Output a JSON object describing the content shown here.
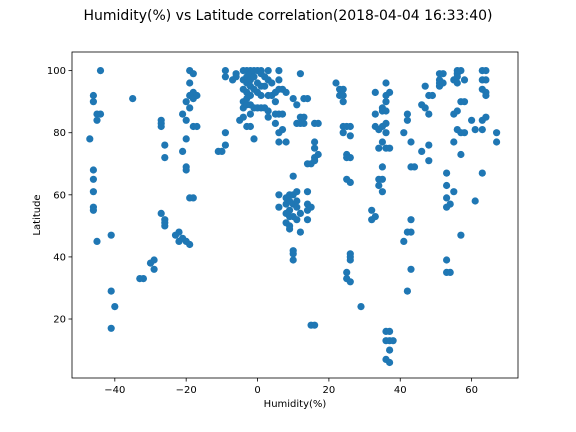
{
  "chart_data": {
    "type": "scatter",
    "title": "Humidity(%) vs Latitude correlation(2018-04-04 16:33:40)",
    "xlabel": "Humidity(%)",
    "ylabel": "Latitude",
    "xlim": [
      -52,
      73
    ],
    "ylim": [
      1,
      106
    ],
    "xticks": [
      -40,
      -20,
      0,
      20,
      40,
      60
    ],
    "yticks": [
      20,
      40,
      60,
      80,
      100
    ],
    "grid": false,
    "marker_color": "#1f77b4",
    "points": [
      [
        -47,
        78
      ],
      [
        -46,
        92
      ],
      [
        -46,
        90
      ],
      [
        -46,
        68
      ],
      [
        -46,
        65
      ],
      [
        -46,
        61
      ],
      [
        -46,
        56
      ],
      [
        -46,
        55
      ],
      [
        -45,
        86
      ],
      [
        -45,
        84
      ],
      [
        -45,
        45
      ],
      [
        -44,
        86
      ],
      [
        -44,
        100
      ],
      [
        -41,
        47
      ],
      [
        -41,
        29
      ],
      [
        -41,
        17
      ],
      [
        -40,
        24
      ],
      [
        -35,
        91
      ],
      [
        -33,
        33
      ],
      [
        -32,
        33
      ],
      [
        -30,
        38
      ],
      [
        -29,
        39
      ],
      [
        -29,
        36
      ],
      [
        -27,
        84
      ],
      [
        -27,
        83
      ],
      [
        -27,
        82
      ],
      [
        -27,
        54
      ],
      [
        -26,
        76
      ],
      [
        -26,
        72
      ],
      [
        -26,
        52
      ],
      [
        -26,
        51
      ],
      [
        -26,
        50
      ],
      [
        -23,
        47
      ],
      [
        -22,
        45
      ],
      [
        -22,
        48
      ],
      [
        -21,
        86
      ],
      [
        -21,
        74
      ],
      [
        -21,
        46
      ],
      [
        -20,
        90
      ],
      [
        -20,
        84
      ],
      [
        -20,
        78
      ],
      [
        -20,
        69
      ],
      [
        -20,
        68
      ],
      [
        -20,
        45
      ],
      [
        -19,
        100
      ],
      [
        -19,
        96
      ],
      [
        -19,
        92
      ],
      [
        -19,
        88
      ],
      [
        -19,
        44
      ],
      [
        -19,
        59
      ],
      [
        -18,
        93
      ],
      [
        -18,
        91
      ],
      [
        -18,
        99
      ],
      [
        -18,
        82
      ],
      [
        -18,
        59
      ],
      [
        -17,
        92
      ],
      [
        -17,
        82
      ],
      [
        -11,
        74
      ],
      [
        -10,
        74
      ],
      [
        -9,
        100
      ],
      [
        -9,
        98
      ],
      [
        -9,
        80
      ],
      [
        -9,
        76
      ],
      [
        -7,
        97
      ],
      [
        -6,
        99
      ],
      [
        -6,
        98
      ],
      [
        -5,
        84
      ],
      [
        -4,
        97
      ],
      [
        -4,
        94
      ],
      [
        -4,
        90
      ],
      [
        -4,
        88
      ],
      [
        -4,
        85
      ],
      [
        -4,
        100
      ],
      [
        -3,
        100
      ],
      [
        -3,
        98
      ],
      [
        -3,
        96
      ],
      [
        -3,
        93
      ],
      [
        -3,
        91
      ],
      [
        -3,
        89
      ],
      [
        -3,
        82
      ],
      [
        -2,
        100
      ],
      [
        -2,
        99
      ],
      [
        -2,
        97
      ],
      [
        -2,
        95
      ],
      [
        -2,
        92
      ],
      [
        -2,
        89
      ],
      [
        -2,
        86
      ],
      [
        -2,
        82
      ],
      [
        -1,
        100
      ],
      [
        -1,
        98
      ],
      [
        -1,
        94
      ],
      [
        -1,
        88
      ],
      [
        -1,
        78
      ],
      [
        0,
        100
      ],
      [
        0,
        96
      ],
      [
        0,
        93
      ],
      [
        0,
        88
      ],
      [
        1,
        100
      ],
      [
        1,
        99
      ],
      [
        1,
        95
      ],
      [
        1,
        92
      ],
      [
        1,
        88
      ],
      [
        2,
        98
      ],
      [
        2,
        95
      ],
      [
        2,
        88
      ],
      [
        3,
        100
      ],
      [
        3,
        97
      ],
      [
        3,
        92
      ],
      [
        3,
        87
      ],
      [
        3,
        85
      ],
      [
        4,
        96
      ],
      [
        4,
        92
      ],
      [
        5,
        93
      ],
      [
        5,
        90
      ],
      [
        5,
        86
      ],
      [
        5,
        83
      ],
      [
        6,
        100
      ],
      [
        6,
        97
      ],
      [
        6,
        94
      ],
      [
        6,
        86
      ],
      [
        6,
        80
      ],
      [
        6,
        77
      ],
      [
        6,
        60
      ],
      [
        6,
        56
      ],
      [
        7,
        94
      ],
      [
        7,
        86
      ],
      [
        7,
        81
      ],
      [
        8,
        93
      ],
      [
        8,
        77
      ],
      [
        8,
        59
      ],
      [
        8,
        57
      ],
      [
        8,
        54
      ],
      [
        8,
        51
      ],
      [
        9,
        60
      ],
      [
        9,
        58
      ],
      [
        9,
        55
      ],
      [
        9,
        53
      ],
      [
        9,
        50
      ],
      [
        9,
        49
      ],
      [
        10,
        91
      ],
      [
        10,
        66
      ],
      [
        10,
        60
      ],
      [
        10,
        57
      ],
      [
        10,
        53
      ],
      [
        10,
        42
      ],
      [
        10,
        41
      ],
      [
        10,
        39
      ],
      [
        11,
        89
      ],
      [
        11,
        83
      ],
      [
        11,
        61
      ],
      [
        11,
        58
      ],
      [
        11,
        56
      ],
      [
        11,
        52
      ],
      [
        12,
        99
      ],
      [
        12,
        85
      ],
      [
        12,
        83
      ],
      [
        12,
        54
      ],
      [
        12,
        48
      ],
      [
        13,
        91
      ],
      [
        13,
        85
      ],
      [
        13,
        83
      ],
      [
        14,
        91
      ],
      [
        14,
        70
      ],
      [
        14,
        61
      ],
      [
        14,
        57
      ],
      [
        14,
        55
      ],
      [
        14,
        52
      ],
      [
        15,
        70
      ],
      [
        15,
        56
      ],
      [
        15,
        18
      ],
      [
        16,
        83
      ],
      [
        16,
        77
      ],
      [
        16,
        75
      ],
      [
        16,
        72
      ],
      [
        16,
        71
      ],
      [
        16,
        18
      ],
      [
        17,
        83
      ],
      [
        17,
        73
      ],
      [
        22,
        96
      ],
      [
        23,
        94
      ],
      [
        23,
        92
      ],
      [
        24,
        94
      ],
      [
        24,
        92
      ],
      [
        24,
        90
      ],
      [
        24,
        82
      ],
      [
        24,
        80
      ],
      [
        25,
        82
      ],
      [
        25,
        73
      ],
      [
        25,
        72
      ],
      [
        25,
        65
      ],
      [
        25,
        35
      ],
      [
        25,
        33
      ],
      [
        26,
        82
      ],
      [
        26,
        79
      ],
      [
        26,
        72
      ],
      [
        26,
        64
      ],
      [
        26,
        41
      ],
      [
        26,
        40
      ],
      [
        26,
        39
      ],
      [
        26,
        32
      ],
      [
        29,
        24
      ],
      [
        32,
        55
      ],
      [
        32,
        52
      ],
      [
        33,
        53
      ],
      [
        33,
        93
      ],
      [
        33,
        86
      ],
      [
        33,
        82
      ],
      [
        34,
        75
      ],
      [
        34,
        65
      ],
      [
        34,
        63
      ],
      [
        34,
        81
      ],
      [
        35,
        88
      ],
      [
        35,
        87
      ],
      [
        35,
        82
      ],
      [
        35,
        77
      ],
      [
        35,
        69
      ],
      [
        35,
        65
      ],
      [
        35,
        61
      ],
      [
        36,
        96
      ],
      [
        36,
        92
      ],
      [
        36,
        90
      ],
      [
        36,
        87
      ],
      [
        36,
        83
      ],
      [
        36,
        80
      ],
      [
        36,
        75
      ],
      [
        36,
        16
      ],
      [
        36,
        13
      ],
      [
        36,
        7
      ],
      [
        37,
        93
      ],
      [
        37,
        75
      ],
      [
        37,
        16
      ],
      [
        37,
        13
      ],
      [
        37,
        10
      ],
      [
        37,
        6
      ],
      [
        38,
        13
      ],
      [
        41,
        80
      ],
      [
        41,
        45
      ],
      [
        42,
        86
      ],
      [
        42,
        84
      ],
      [
        42,
        48
      ],
      [
        42,
        29
      ],
      [
        43,
        77
      ],
      [
        43,
        52
      ],
      [
        43,
        48
      ],
      [
        43,
        36
      ],
      [
        43,
        69
      ],
      [
        44,
        69
      ],
      [
        46,
        89
      ],
      [
        46,
        74
      ],
      [
        47,
        95
      ],
      [
        47,
        88
      ],
      [
        48,
        92
      ],
      [
        48,
        86
      ],
      [
        48,
        76
      ],
      [
        48,
        71
      ],
      [
        49,
        92
      ],
      [
        51,
        99
      ],
      [
        51,
        97
      ],
      [
        51,
        96
      ],
      [
        51,
        95
      ],
      [
        52,
        99
      ],
      [
        52,
        96
      ],
      [
        53,
        67
      ],
      [
        53,
        63
      ],
      [
        53,
        59
      ],
      [
        53,
        56
      ],
      [
        53,
        39
      ],
      [
        53,
        35
      ],
      [
        54,
        57
      ],
      [
        54,
        35
      ],
      [
        55,
        97
      ],
      [
        55,
        86
      ],
      [
        55,
        77
      ],
      [
        55,
        61
      ],
      [
        56,
        100
      ],
      [
        56,
        99
      ],
      [
        56,
        98
      ],
      [
        56,
        96
      ],
      [
        56,
        87
      ],
      [
        56,
        81
      ],
      [
        57,
        100
      ],
      [
        57,
        90
      ],
      [
        57,
        80
      ],
      [
        57,
        73
      ],
      [
        57,
        47
      ],
      [
        58,
        80
      ],
      [
        58,
        90
      ],
      [
        58,
        97
      ],
      [
        60,
        84
      ],
      [
        61,
        81
      ],
      [
        61,
        58
      ],
      [
        63,
        100
      ],
      [
        63,
        97
      ],
      [
        63,
        94
      ],
      [
        63,
        84
      ],
      [
        63,
        81
      ],
      [
        63,
        67
      ],
      [
        64,
        100
      ],
      [
        64,
        97
      ],
      [
        64,
        93
      ],
      [
        64,
        92
      ],
      [
        64,
        85
      ],
      [
        67,
        80
      ],
      [
        67,
        77
      ]
    ]
  }
}
